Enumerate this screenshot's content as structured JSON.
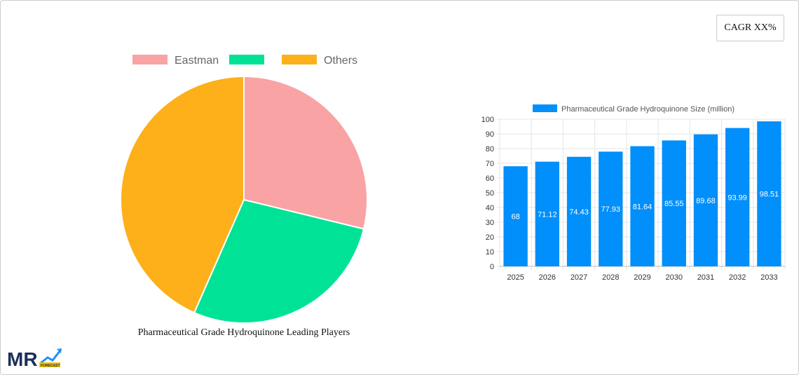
{
  "cagr_label": "CAGR XX%",
  "pie_chart": {
    "type": "pie",
    "title": "Pharmaceutical Grade Hydroquinone Leading Players",
    "legend_placement": "top",
    "slices": [
      {
        "label": "Eastman",
        "value": 28.8,
        "color": "#F9A3A4"
      },
      {
        "label": "",
        "value": 27.8,
        "color": "#00E396"
      },
      {
        "label": "Others",
        "value": 43.4,
        "color": "#FDB01A"
      }
    ]
  },
  "chart_data": {
    "type": "bar",
    "categories": [
      "2025",
      "2026",
      "2027",
      "2028",
      "2029",
      "2030",
      "2031",
      "2032",
      "2033"
    ],
    "series": [
      {
        "name": "Pharmaceutical Grade Hydroquinone Size (million)",
        "values": [
          68,
          71.12,
          74.43,
          77.93,
          81.64,
          85.55,
          89.68,
          93.99,
          98.51
        ],
        "color": "#008FFB"
      }
    ],
    "ylim": [
      0,
      100
    ],
    "yticks": [
      0,
      10,
      20,
      30,
      40,
      50,
      60,
      70,
      80,
      90,
      100
    ],
    "grid": true,
    "legend_placement": "top",
    "data_labels": true
  },
  "logo": {
    "text": "MR FORECAST"
  }
}
